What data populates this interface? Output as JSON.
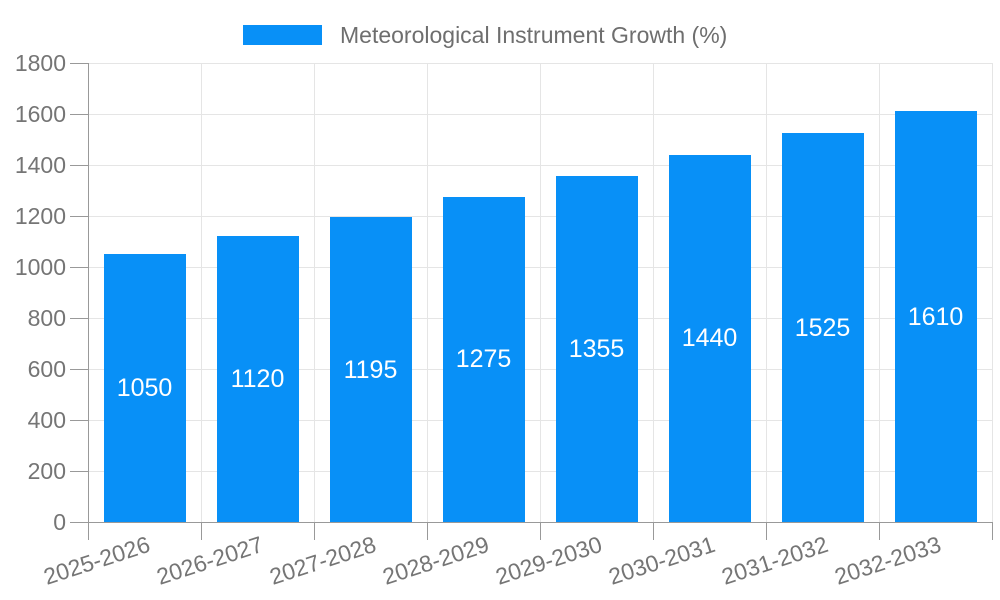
{
  "legend": {
    "label": "Meteorological Instrument Growth (%)"
  },
  "colors": {
    "bar": "#0890f7",
    "axis": "#999999",
    "grid": "#e5e5e5",
    "tick_label": "#757575",
    "legend_text": "#6e6e6e",
    "value_label": "#ffffff"
  },
  "chart_data": {
    "type": "bar",
    "title": "Meteorological Instrument Growth (%)",
    "categories": [
      "2025-2026",
      "2026-2027",
      "2027-2028",
      "2028-2029",
      "2029-2030",
      "2030-2031",
      "2031-2032",
      "2032-2033"
    ],
    "values": [
      1050,
      1120,
      1195,
      1275,
      1355,
      1440,
      1525,
      1610
    ],
    "xlabel": "",
    "ylabel": "",
    "ylim": [
      0,
      1800
    ],
    "ytick_step": 200,
    "yticks": [
      0,
      200,
      400,
      600,
      800,
      1000,
      1200,
      1400,
      1600,
      1800
    ],
    "grid": true,
    "legend_position": "top-center",
    "value_label_position": "inside-middle",
    "x_label_rotation_deg": -18
  }
}
